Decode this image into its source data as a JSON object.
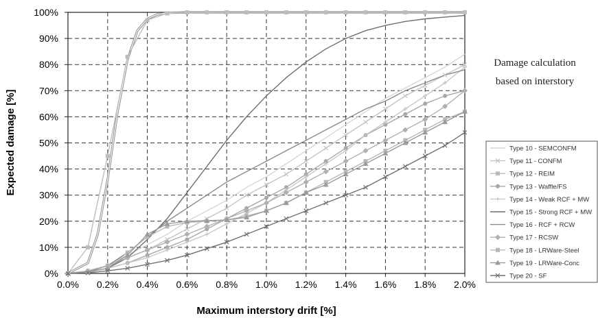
{
  "chart_data": {
    "type": "line",
    "title": "",
    "xlabel": "Maximum interstory drift [%]",
    "ylabel": "Expected damage [%]",
    "xlim": [
      0,
      2.0
    ],
    "ylim": [
      0,
      100
    ],
    "x_ticks": [
      "0.0%",
      "0.2%",
      "0.4%",
      "0.6%",
      "0.8%",
      "1.0%",
      "1.2%",
      "1.4%",
      "1.6%",
      "1.8%",
      "2.0%"
    ],
    "y_ticks": [
      "0%",
      "10%",
      "20%",
      "30%",
      "40%",
      "50%",
      "60%",
      "70%",
      "80%",
      "90%",
      "100%"
    ],
    "grid": true,
    "legend_position": "right",
    "annotation_lines": [
      "Damage calculation",
      "based on interstory"
    ],
    "x": [
      0.0,
      0.1,
      0.2,
      0.3,
      0.4,
      0.5,
      0.6,
      0.7,
      0.8,
      0.9,
      1.0,
      1.1,
      1.2,
      1.3,
      1.4,
      1.5,
      1.6,
      1.7,
      1.8,
      1.9,
      2.0
    ],
    "series": [
      {
        "name": "Type 10 - SEMCONFM",
        "color": "#d6d6d6",
        "marker": "none",
        "values": [
          0,
          1,
          3,
          7,
          11,
          15,
          20,
          24,
          28,
          33,
          37,
          42,
          47,
          52,
          57,
          62,
          67,
          71,
          75,
          79,
          84
        ]
      },
      {
        "name": "Type 11 - CONFM",
        "color": "#c4c4c4",
        "marker": "x",
        "values": [
          0,
          1,
          3,
          6,
          9,
          13,
          17,
          21,
          25,
          30,
          34,
          38,
          43,
          48,
          53,
          58,
          63,
          68,
          72,
          76,
          80
        ]
      },
      {
        "name": "Type 12 - REIM",
        "color": "#bdbdbd",
        "marker": "square",
        "values": [
          0,
          10,
          45,
          83,
          97,
          99.6,
          100,
          100,
          100,
          100,
          100,
          100,
          100,
          100,
          100,
          100,
          100,
          100,
          100,
          100,
          100
        ]
      },
      {
        "name": "Type 13 - Waffle/FS",
        "color": "#a8a8a8",
        "marker": "circle",
        "values": [
          0,
          0.5,
          2,
          4,
          7,
          10,
          13,
          17,
          21,
          25,
          29,
          33,
          38,
          43,
          48,
          53,
          57,
          61,
          65,
          68,
          70
        ]
      },
      {
        "name": "Type 14 - Weak RCF + MW",
        "color": "#c8c8c8",
        "marker": "plus",
        "values": [
          0,
          0.5,
          2,
          4,
          6,
          9,
          12,
          15,
          19,
          23,
          27,
          32,
          37,
          42,
          47,
          53,
          58,
          63,
          68,
          73,
          79
        ]
      },
      {
        "name": "Type 15 - Strong RCF + MW",
        "color": "#6e6e6e",
        "marker": "none",
        "values": [
          0,
          0.5,
          2,
          6,
          13,
          21,
          31,
          41,
          51,
          60,
          68,
          75,
          81,
          86,
          90,
          93,
          95,
          96.5,
          97.5,
          98.2,
          98.8
        ]
      },
      {
        "name": "Type 16 - RCF + RCW",
        "color": "#8a8a8a",
        "marker": "none",
        "values": [
          0,
          0.5,
          3,
          8,
          14,
          20,
          25,
          30,
          35,
          39,
          43,
          47,
          51,
          55,
          59,
          63,
          66,
          70,
          73,
          76,
          78
        ]
      },
      {
        "name": "Type 17 - RCSW",
        "color": "#b0b0b0",
        "marker": "diamond",
        "values": [
          0,
          1,
          3,
          6,
          9,
          12,
          15,
          18,
          21,
          24,
          27,
          31,
          35,
          39,
          43,
          47,
          51,
          55,
          59,
          64,
          70
        ]
      },
      {
        "name": "Type 18 - LRWare-Steel",
        "color": "#b8b8b8",
        "marker": "square",
        "values": [
          0,
          0.5,
          2,
          8,
          14,
          18,
          19.5,
          20,
          20.5,
          22,
          24,
          27,
          31,
          35,
          39,
          43,
          47,
          51,
          55,
          59,
          62
        ]
      },
      {
        "name": "Type 19 - LRWare-Conc",
        "color": "#9a9a9a",
        "marker": "triangle",
        "values": [
          0,
          0.5,
          2,
          7,
          15,
          19,
          20,
          20.2,
          20.5,
          21.5,
          24,
          27,
          31,
          34,
          38,
          42,
          46,
          50,
          54,
          58,
          62
        ]
      },
      {
        "name": "Type 20 - SF",
        "color": "#707070",
        "marker": "x",
        "values": [
          0,
          0.2,
          1,
          2,
          3.5,
          5,
          7,
          9.5,
          12,
          15,
          18,
          21,
          24,
          27,
          30,
          33,
          37,
          41,
          45,
          49,
          54
        ]
      }
    ],
    "extra_curves": [
      {
        "color": "#9a9a9a",
        "marker": "none",
        "x": [
          0.0,
          0.1,
          0.15,
          0.2,
          0.25,
          0.3,
          0.35,
          0.4,
          0.45,
          0.5,
          0.6,
          0.8,
          1.0,
          1.2,
          1.4,
          1.6,
          1.8,
          2.0
        ],
        "values": [
          0,
          4,
          15,
          36,
          62,
          82,
          93,
          97.5,
          99.2,
          99.8,
          100,
          100,
          100,
          100,
          100,
          100,
          100,
          100
        ]
      }
    ]
  }
}
